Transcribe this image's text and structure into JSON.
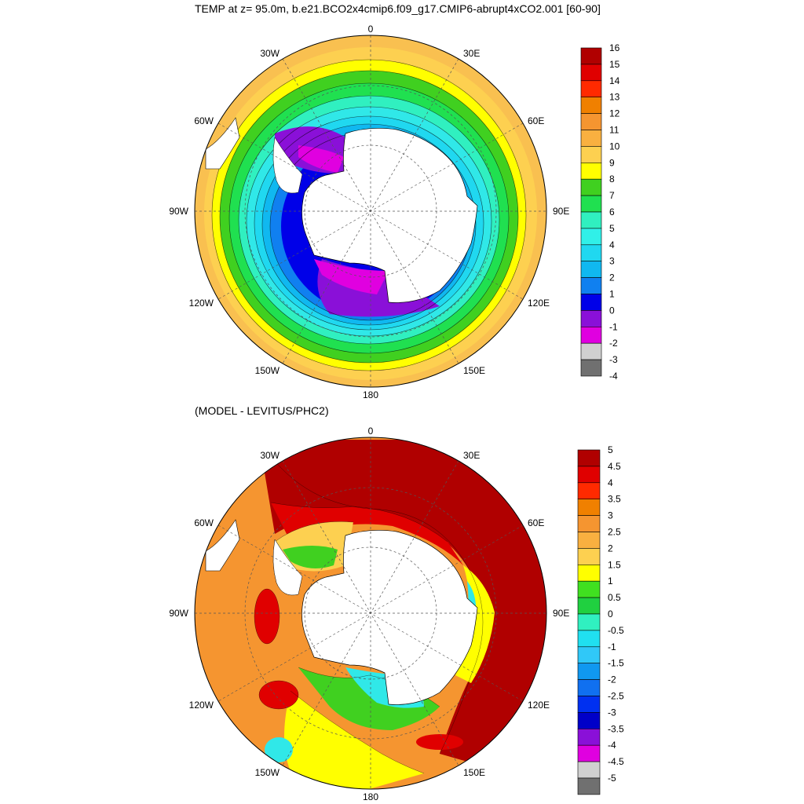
{
  "top_panel": {
    "title": "TEMP at z=  95.0m, b.e21.BCO2x4cmip6.f09_g17.CMIP6-abrupt4xCO2.001 [60-90]",
    "lon_labels": [
      "0",
      "30E",
      "60E",
      "90E",
      "120E",
      "150E",
      "180",
      "150W",
      "120W",
      "90W",
      "60W",
      "30W"
    ],
    "colorbar": {
      "levels": [
        "16",
        "15",
        "14",
        "13",
        "12",
        "11",
        "10",
        "9",
        "8",
        "7",
        "6",
        "5",
        "4",
        "3",
        "2",
        "1",
        "0",
        "-1",
        "-2",
        "-3",
        "-4"
      ],
      "colors": [
        "#b00000",
        "#e00000",
        "#ff2a00",
        "#f08000",
        "#f59530",
        "#f9b040",
        "#fdd050",
        "#ffff00",
        "#40d020",
        "#20e050",
        "#30f0c0",
        "#30f0e8",
        "#20d8f0",
        "#10b8f0",
        "#1080f0",
        "#0000e8",
        "#8a10d8",
        "#e000e0",
        "#d0d0d0",
        "#707070"
      ]
    }
  },
  "bottom_panel": {
    "title": "(MODEL - LEVITUS/PHC2)",
    "lon_labels": [
      "0",
      "30E",
      "60E",
      "90E",
      "120E",
      "150E",
      "180",
      "150W",
      "120W",
      "90W",
      "60W",
      "30W"
    ],
    "colorbar": {
      "levels": [
        "5",
        "4.5",
        "4",
        "3.5",
        "3",
        "2.5",
        "2",
        "1.5",
        "1",
        "0.5",
        "0",
        "-0.5",
        "-1",
        "-1.5",
        "-2",
        "-2.5",
        "-3",
        "-3.5",
        "-4",
        "-4.5",
        "-5"
      ],
      "colors": [
        "#b00000",
        "#e00000",
        "#ff2a00",
        "#f08000",
        "#f59530",
        "#f9b040",
        "#fdd050",
        "#ffff00",
        "#40e020",
        "#20d040",
        "#30f0c0",
        "#20e0f0",
        "#30c8f8",
        "#1098f0",
        "#1070f0",
        "#0030f0",
        "#0000c8",
        "#8a10d8",
        "#e000e0",
        "#d0d0d0",
        "#707070"
      ]
    }
  },
  "colors": {
    "land": "#ffffff",
    "background": "#ffffff",
    "grid": "#555555"
  }
}
